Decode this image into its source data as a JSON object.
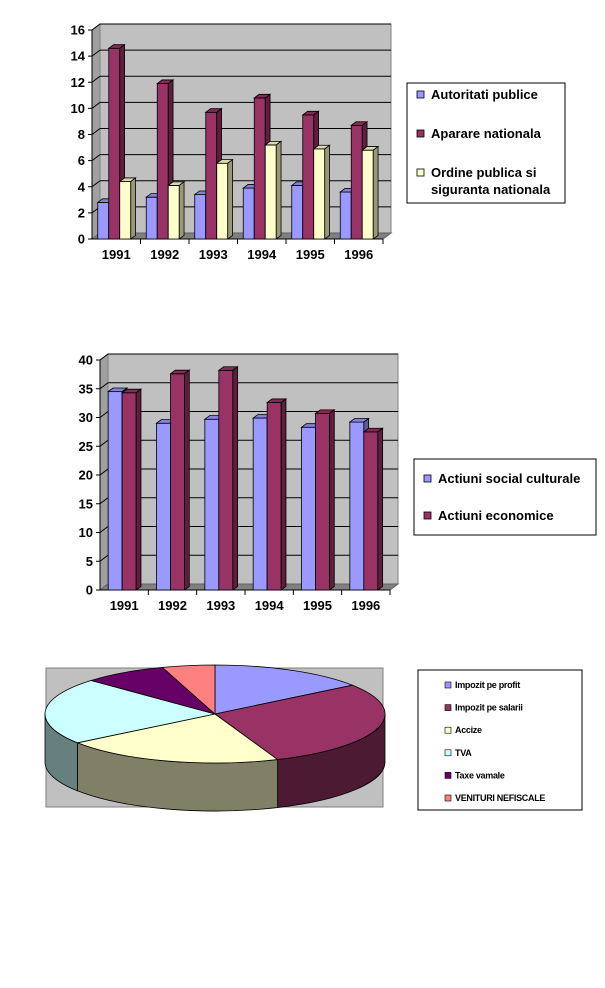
{
  "colors": {
    "plot_bg": "#c0c0c0",
    "grid": "#000000",
    "series_blue": "#9999ff",
    "series_maroon": "#993366",
    "series_cream": "#ffffcc",
    "series_cyan": "#ccffff",
    "series_purple": "#660066",
    "series_salmon": "#ff8080"
  },
  "chart_data": [
    {
      "type": "bar",
      "categories": [
        "1991",
        "1992",
        "1993",
        "1994",
        "1995",
        "1996"
      ],
      "ylim": [
        0,
        16
      ],
      "yticks": [
        "0",
        "2",
        "4",
        "6",
        "8",
        "10",
        "12",
        "14",
        "16"
      ],
      "grid": true,
      "legend_position": "right",
      "series": [
        {
          "name": "Autoritati publice",
          "values": [
            2.8,
            3.2,
            3.4,
            3.9,
            4.1,
            3.6
          ]
        },
        {
          "name": "Aparare nationala",
          "values": [
            14.6,
            11.9,
            9.7,
            10.8,
            9.5,
            8.7
          ]
        },
        {
          "name_lines": [
            "Ordine publica si",
            "siguranta nationala"
          ],
          "values": [
            4.4,
            4.1,
            5.8,
            7.2,
            6.9,
            6.8
          ]
        }
      ]
    },
    {
      "type": "bar",
      "categories": [
        "1991",
        "1992",
        "1993",
        "1994",
        "1995",
        "1996"
      ],
      "ylim": [
        0,
        40
      ],
      "yticks": [
        "0",
        "5",
        "10",
        "15",
        "20",
        "25",
        "30",
        "35",
        "40"
      ],
      "grid": true,
      "legend_position": "right",
      "series": [
        {
          "name": "Actiuni social culturale",
          "values": [
            34.5,
            29.0,
            29.7,
            29.9,
            28.3,
            29.2
          ]
        },
        {
          "name": "Actiuni economice",
          "values": [
            34.3,
            37.6,
            38.2,
            32.6,
            30.7,
            27.5
          ]
        }
      ]
    },
    {
      "type": "pie",
      "legend_position": "right",
      "slices": [
        {
          "name": "Impozit pe profit",
          "value": 15
        },
        {
          "name": "Impozit pe salarii",
          "value": 29
        },
        {
          "name": "Accize",
          "value": 21
        },
        {
          "name": "TVA",
          "value": 22
        },
        {
          "name": "Taxe vamale",
          "value": 8
        },
        {
          "name": "VENITURI NEFISCALE",
          "value": 5
        }
      ]
    }
  ]
}
